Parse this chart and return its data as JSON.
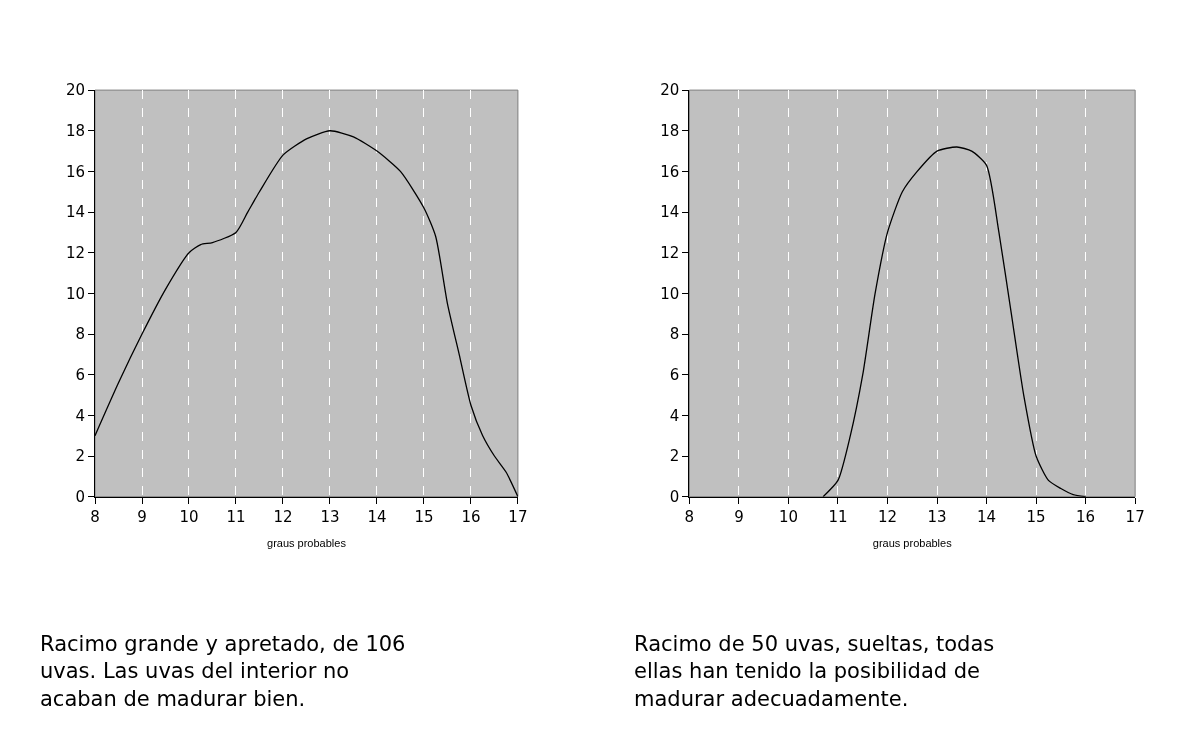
{
  "chart_data": [
    {
      "type": "line",
      "xlabel": "graus probables",
      "x": [
        8,
        8.5,
        9,
        9.5,
        10,
        10.25,
        10.5,
        11,
        11.25,
        11.5,
        12,
        12.5,
        13,
        13.5,
        14,
        14.5,
        15,
        15.25,
        15.5,
        15.75,
        16,
        16.25,
        16.5,
        16.75,
        17
      ],
      "series": [
        {
          "color": "#000000",
          "values": [
            3,
            5.6,
            8,
            10.2,
            12,
            12.4,
            12.5,
            13,
            14,
            15,
            16.8,
            17.6,
            18,
            17.7,
            17,
            16,
            14.2,
            12.8,
            9.5,
            7,
            4.5,
            3,
            2,
            1.2,
            0
          ]
        }
      ],
      "xlim": [
        8,
        17
      ],
      "xticks": [
        8,
        9,
        10,
        11,
        12,
        13,
        14,
        15,
        16,
        17
      ],
      "ylim": [
        0,
        20
      ],
      "yticks": [
        0,
        2,
        4,
        6,
        8,
        10,
        12,
        14,
        16,
        18,
        20
      ],
      "grid": "x",
      "marker": "none",
      "line_style": "solid",
      "annotations": [
        "Racimo grande y apretado, de 106 uvas. Las uvas del interior no acaban de madurar bien."
      ]
    },
    {
      "type": "line",
      "xlabel": "graus probables",
      "x": [
        10.7,
        11,
        11.25,
        11.5,
        11.75,
        12,
        12.3,
        12.6,
        13,
        13.4,
        13.7,
        14,
        14.25,
        14.5,
        14.75,
        15,
        15.25,
        15.5,
        15.75,
        16
      ],
      "series": [
        {
          "color": "#000000",
          "values": [
            0,
            0.8,
            3,
            6,
            10,
            13,
            15,
            16,
            17,
            17.2,
            17,
            16.3,
            13,
            9,
            5,
            2,
            0.8,
            0.4,
            0.1,
            0
          ]
        }
      ],
      "xlim": [
        8,
        17
      ],
      "xticks": [
        8,
        9,
        10,
        11,
        12,
        13,
        14,
        15,
        16,
        17
      ],
      "ylim": [
        0,
        20
      ],
      "yticks": [
        0,
        2,
        4,
        6,
        8,
        10,
        12,
        14,
        16,
        18,
        20
      ],
      "grid": "x",
      "marker": "none",
      "line_style": "solid",
      "annotations": [
        "Racimo de 50 uvas, sueltas, todas ellas han tenido la posibilidad de madurar adecuadamente."
      ]
    }
  ]
}
